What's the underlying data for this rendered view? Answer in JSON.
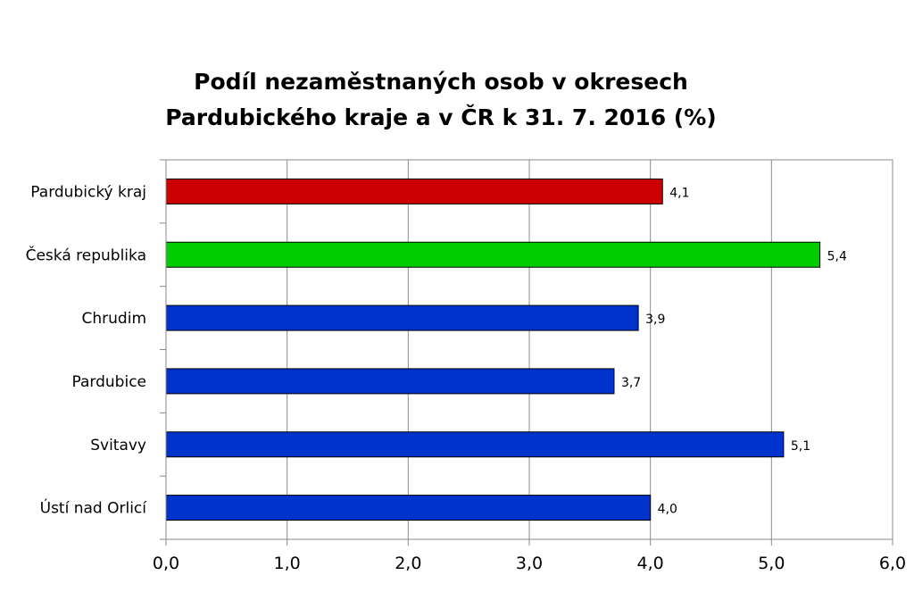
{
  "chart_data": {
    "type": "bar",
    "orientation": "horizontal",
    "title_lines": [
      "Podíl nezaměstnaných osob v okresech",
      "Pardubického kraje a v ČR k 31. 7. 2016 (%)"
    ],
    "categories": [
      "Pardubický kraj",
      "Česká republika",
      "Chrudim",
      "Pardubice",
      "Svitavy",
      "Ústí nad Orlicí"
    ],
    "values": [
      4.1,
      5.4,
      3.9,
      3.7,
      5.1,
      4.0
    ],
    "value_labels": [
      "4,1",
      "5,4",
      "3,9",
      "3,7",
      "5,1",
      "4,0"
    ],
    "bar_colors": [
      "#cc0000",
      "#00cc00",
      "#0033cc",
      "#0033cc",
      "#0033cc",
      "#0033cc"
    ],
    "xlim": [
      0,
      6
    ],
    "xticks": [
      0,
      1,
      2,
      3,
      4,
      5,
      6
    ],
    "xtick_labels": [
      "0,0",
      "1,0",
      "2,0",
      "3,0",
      "4,0",
      "5,0",
      "6,0"
    ],
    "grid": true,
    "legend": false
  }
}
